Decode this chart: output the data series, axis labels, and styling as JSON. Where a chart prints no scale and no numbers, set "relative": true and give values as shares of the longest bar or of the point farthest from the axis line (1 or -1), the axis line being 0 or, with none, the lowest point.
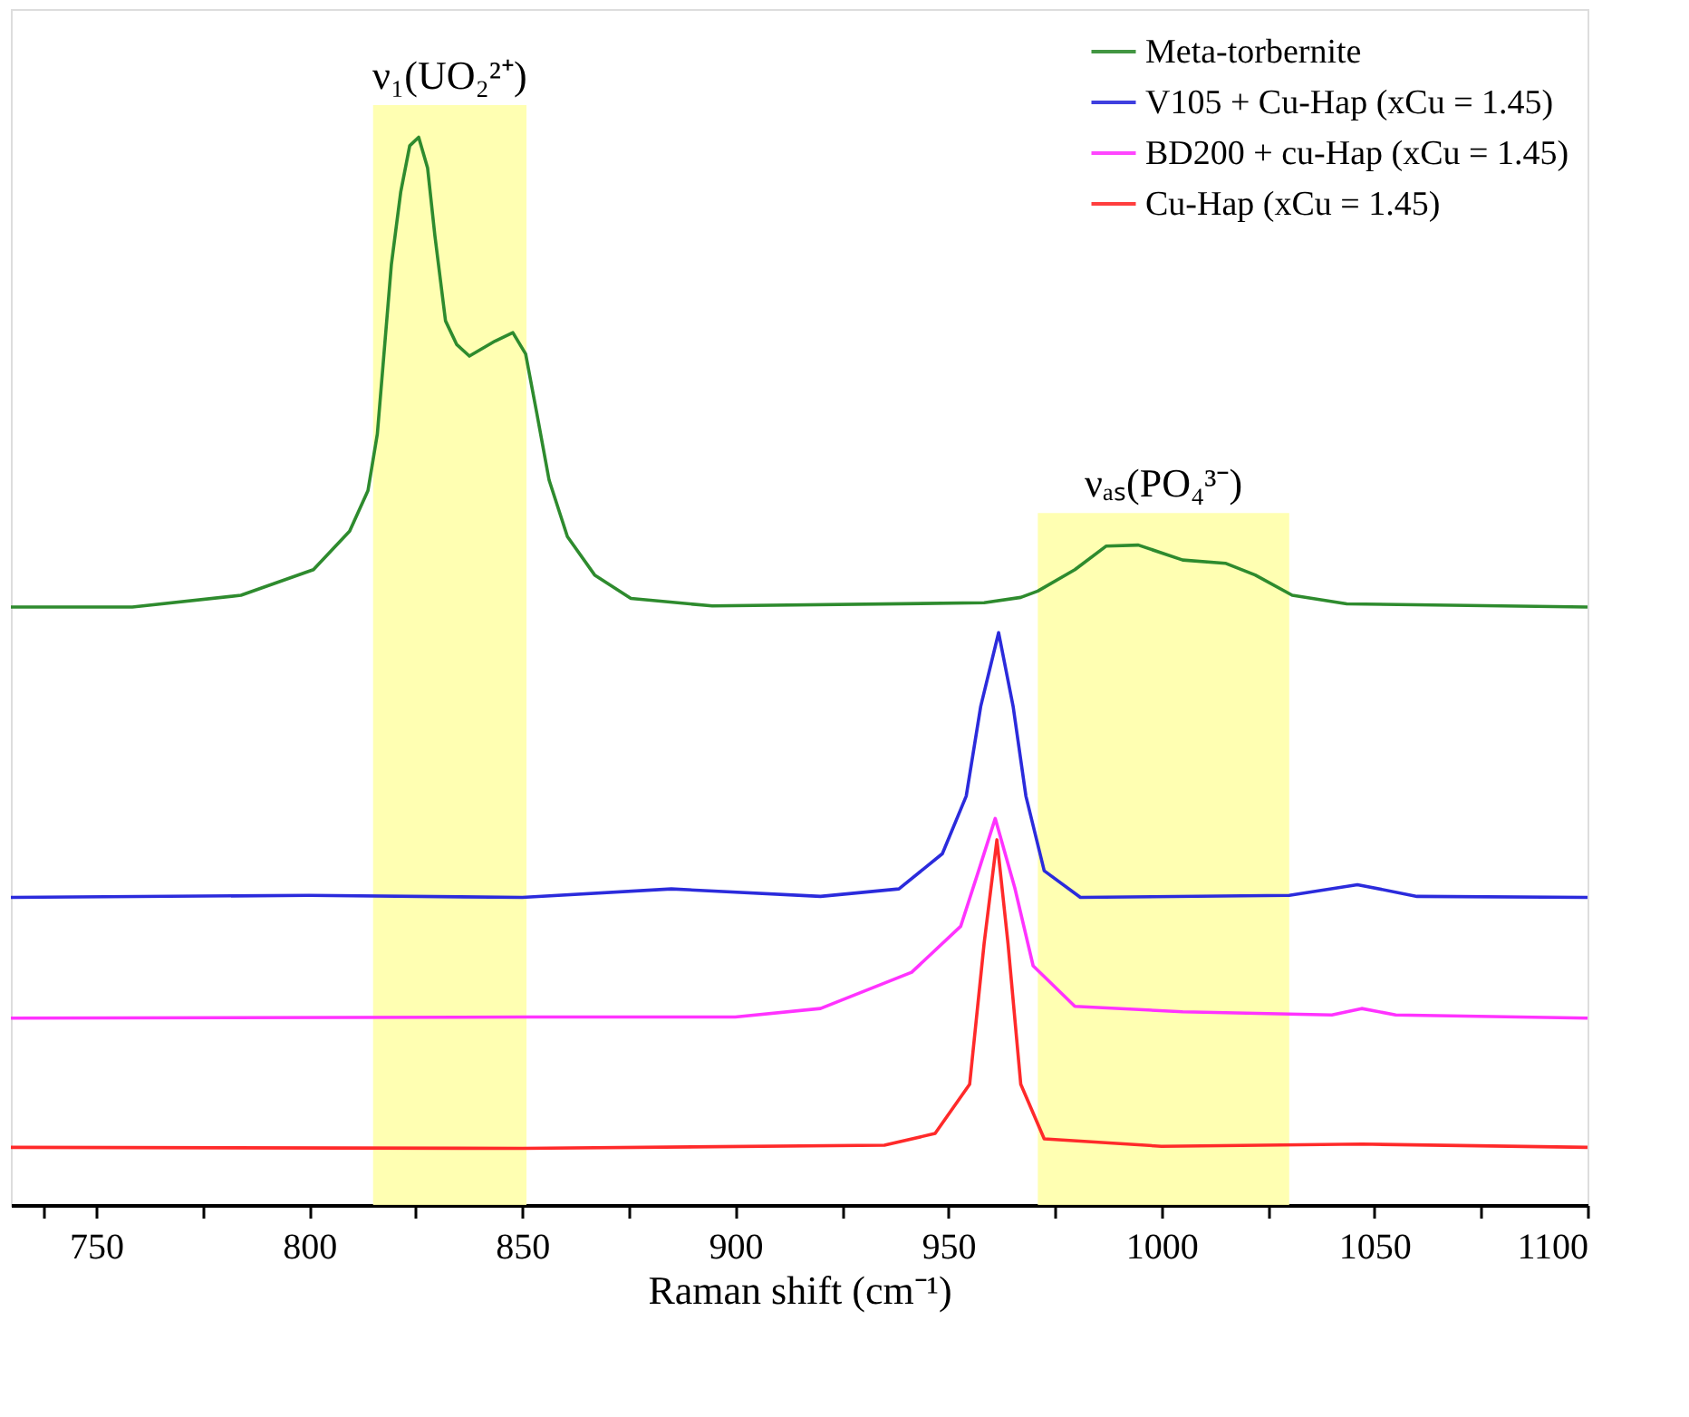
{
  "chart_data": {
    "type": "line",
    "relative": true,
    "xlabel": "Raman shift (cm⁻¹)",
    "xlim": [
      730,
      1100
    ],
    "xticks": [
      {
        "value": 737.5,
        "label": null
      },
      750,
      {
        "value": 775,
        "label": null
      },
      800,
      {
        "value": 825,
        "label": null
      },
      850,
      {
        "value": 875,
        "label": null
      },
      900,
      {
        "value": 925,
        "label": null
      },
      950,
      {
        "value": 975,
        "label": null
      },
      1000,
      {
        "value": 1025,
        "label": null
      },
      1050,
      {
        "value": 1075,
        "label": null
      },
      1100
    ],
    "grid": false,
    "legend": "top right",
    "line_style": "solid",
    "bands": [
      {
        "axis": "x",
        "from": 815,
        "to": 851,
        "label": "ν₁(UO₂²⁺)",
        "color": "#ffffaa"
      },
      {
        "axis": "x",
        "from": 971,
        "to": 1030,
        "label": "νₐₛ(PO₄³⁻)",
        "color": "#ffffaa"
      }
    ],
    "series": [
      {
        "name": "Meta-torbernite",
        "color": "#2e8b2e",
        "x": [
          730,
          758.5,
          784,
          801,
          809.5,
          813.8,
          816,
          819.3,
          821.5,
          823.6,
          825.7,
          827.8,
          829.5,
          832,
          834.6,
          837.6,
          843.6,
          847.8,
          850.8,
          853.4,
          856.3,
          860.6,
          867,
          875.5,
          894.6,
          958.4,
          967,
          971,
          979.7,
          987,
          994.6,
          1005,
          1015,
          1022,
          1030.7,
          1043.5,
          1100
        ],
        "values": [
          0.56,
          0.56,
          0.571,
          0.595,
          0.631,
          0.669,
          0.722,
          0.881,
          0.949,
          0.992,
          1.0,
          0.971,
          0.908,
          0.828,
          0.806,
          0.795,
          0.809,
          0.817,
          0.797,
          0.742,
          0.679,
          0.626,
          0.59,
          0.568,
          0.561,
          0.564,
          0.569,
          0.575,
          0.595,
          0.617,
          0.618,
          0.604,
          0.601,
          0.59,
          0.571,
          0.563,
          0.56
        ]
      },
      {
        "name": "V105 + Cu-Hap (xCu = 1.45)",
        "color": "#2b2bdc",
        "x": [
          730,
          800,
          850,
          885,
          920,
          938.4,
          948.6,
          954.2,
          957.6,
          961.8,
          965.2,
          968.2,
          972.5,
          981,
          1030,
          1046,
          1060,
          1100
        ],
        "values": [
          0.288,
          0.29,
          0.288,
          0.296,
          0.289,
          0.296,
          0.329,
          0.383,
          0.467,
          0.536,
          0.467,
          0.383,
          0.313,
          0.288,
          0.29,
          0.3,
          0.289,
          0.288
        ]
      },
      {
        "name": "BD200 + cu-Hap (xCu = 1.45)",
        "color": "#ff33ff",
        "x": [
          730,
          850,
          900,
          920,
          941.4,
          952.9,
          957.1,
          961,
          965.6,
          969.9,
          979.7,
          1005,
          1040,
          1047,
          1055,
          1100
        ],
        "values": [
          0.175,
          0.176,
          0.176,
          0.184,
          0.218,
          0.261,
          0.313,
          0.362,
          0.297,
          0.224,
          0.186,
          0.181,
          0.178,
          0.184,
          0.178,
          0.175
        ]
      },
      {
        "name": "Cu-Hap (xCu = 1.45)",
        "color": "#ff2a2a",
        "x": [
          730,
          850,
          935,
          946.9,
          955,
          958.4,
          961.4,
          964,
          967,
          972.5,
          1000,
          1047,
          1100
        ],
        "values": [
          0.054,
          0.053,
          0.056,
          0.067,
          0.113,
          0.245,
          0.342,
          0.245,
          0.113,
          0.062,
          0.055,
          0.057,
          0.054
        ]
      }
    ]
  }
}
